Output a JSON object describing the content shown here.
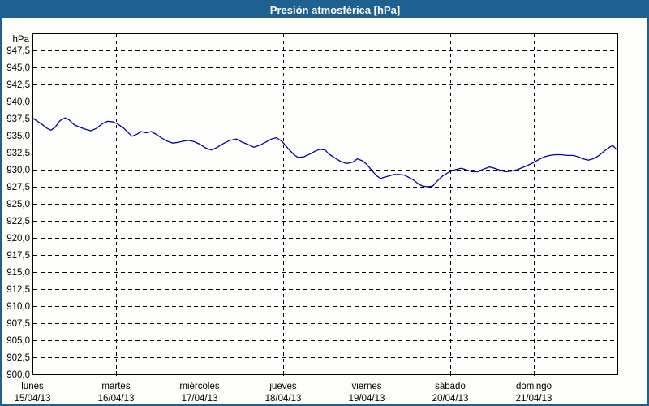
{
  "title_bar": {
    "title": "Presión atmosférica [hPa]"
  },
  "colors": {
    "frame_blue": "#1e6191",
    "title_text": "#ffffff",
    "background": "#fdfefa",
    "plot_background": "#fefefc",
    "grid": "#000000",
    "axis_text": "#000000",
    "line_blue": "#0101a8"
  },
  "chart_data": {
    "type": "line",
    "title": "Presión atmosférica [hPa]",
    "y_unit_label": "hPa",
    "ylim": [
      900.0,
      950.0
    ],
    "ytick_step": 2.5,
    "grid": "dashed",
    "legend": "none",
    "ytick_labels": [
      {
        "value": 947.5,
        "label": "947,5"
      },
      {
        "value": 945.0,
        "label": "945,0"
      },
      {
        "value": 942.5,
        "label": "942,5"
      },
      {
        "value": 940.0,
        "label": "940,0"
      },
      {
        "value": 937.5,
        "label": "937,5"
      },
      {
        "value": 935.0,
        "label": "935,0"
      },
      {
        "value": 932.5,
        "label": "932,5"
      },
      {
        "value": 930.0,
        "label": "930,0"
      },
      {
        "value": 927.5,
        "label": "927,5"
      },
      {
        "value": 925.0,
        "label": "925,0"
      },
      {
        "value": 922.5,
        "label": "922,5"
      },
      {
        "value": 920.0,
        "label": "920,0"
      },
      {
        "value": 917.5,
        "label": "917,5"
      },
      {
        "value": 915.0,
        "label": "915,0"
      },
      {
        "value": 912.5,
        "label": "912,5"
      },
      {
        "value": 910.0,
        "label": "910,0"
      },
      {
        "value": 907.5,
        "label": "907,5"
      },
      {
        "value": 905.0,
        "label": "905,0"
      },
      {
        "value": 902.5,
        "label": "902,5"
      },
      {
        "value": 900.0,
        "label": "900,0"
      }
    ],
    "x_days": [
      {
        "name": "lunes",
        "date": "15/04/13"
      },
      {
        "name": "martes",
        "date": "16/04/13"
      },
      {
        "name": "miércoles",
        "date": "17/04/13"
      },
      {
        "name": "jueves",
        "date": "18/04/13"
      },
      {
        "name": "viernes",
        "date": "19/04/13"
      },
      {
        "name": "sábado",
        "date": "20/04/13"
      },
      {
        "name": "domingo",
        "date": "21/04/13"
      }
    ],
    "series": [
      {
        "name": "Presión atmosférica",
        "unit": "hPa",
        "x_unit": "days from 15/04/13 00:00",
        "points": [
          [
            0.0,
            937.6
          ],
          [
            0.06,
            937.1
          ],
          [
            0.12,
            936.6
          ],
          [
            0.17,
            936.1
          ],
          [
            0.22,
            935.8
          ],
          [
            0.27,
            936.2
          ],
          [
            0.33,
            937.2
          ],
          [
            0.39,
            937.6
          ],
          [
            0.44,
            937.3
          ],
          [
            0.5,
            936.6
          ],
          [
            0.57,
            936.2
          ],
          [
            0.64,
            935.9
          ],
          [
            0.7,
            935.7
          ],
          [
            0.77,
            936.1
          ],
          [
            0.83,
            936.7
          ],
          [
            0.9,
            937.1
          ],
          [
            0.97,
            937.0
          ],
          [
            1.02,
            936.7
          ],
          [
            1.09,
            936.1
          ],
          [
            1.15,
            935.4
          ],
          [
            1.19,
            934.9
          ],
          [
            1.25,
            935.2
          ],
          [
            1.3,
            935.6
          ],
          [
            1.36,
            935.4
          ],
          [
            1.42,
            935.6
          ],
          [
            1.48,
            935.2
          ],
          [
            1.54,
            934.7
          ],
          [
            1.61,
            934.2
          ],
          [
            1.68,
            933.9
          ],
          [
            1.74,
            934.0
          ],
          [
            1.81,
            934.2
          ],
          [
            1.87,
            934.3
          ],
          [
            1.94,
            934.1
          ],
          [
            2.01,
            933.7
          ],
          [
            2.07,
            933.2
          ],
          [
            2.14,
            932.9
          ],
          [
            2.2,
            933.2
          ],
          [
            2.28,
            933.8
          ],
          [
            2.36,
            934.3
          ],
          [
            2.44,
            934.5
          ],
          [
            2.5,
            934.1
          ],
          [
            2.58,
            933.7
          ],
          [
            2.65,
            933.3
          ],
          [
            2.72,
            933.6
          ],
          [
            2.8,
            934.1
          ],
          [
            2.86,
            934.5
          ],
          [
            2.92,
            934.7
          ],
          [
            2.99,
            934.1
          ],
          [
            3.06,
            933.1
          ],
          [
            3.13,
            932.2
          ],
          [
            3.18,
            931.8
          ],
          [
            3.25,
            931.9
          ],
          [
            3.32,
            932.3
          ],
          [
            3.38,
            932.7
          ],
          [
            3.44,
            933.0
          ],
          [
            3.5,
            932.9
          ],
          [
            3.55,
            932.3
          ],
          [
            3.62,
            931.7
          ],
          [
            3.69,
            931.2
          ],
          [
            3.76,
            930.9
          ],
          [
            3.83,
            931.1
          ],
          [
            3.89,
            931.6
          ],
          [
            3.95,
            931.3
          ],
          [
            4.0,
            930.8
          ],
          [
            4.06,
            929.9
          ],
          [
            4.12,
            929.1
          ],
          [
            4.17,
            928.7
          ],
          [
            4.21,
            928.9
          ],
          [
            4.27,
            929.1
          ],
          [
            4.33,
            929.3
          ],
          [
            4.39,
            929.3
          ],
          [
            4.45,
            929.2
          ],
          [
            4.5,
            928.9
          ],
          [
            4.56,
            928.5
          ],
          [
            4.62,
            927.9
          ],
          [
            4.67,
            927.6
          ],
          [
            4.73,
            927.5
          ],
          [
            4.79,
            927.6
          ],
          [
            4.84,
            928.3
          ],
          [
            4.91,
            929.1
          ],
          [
            4.99,
            929.7
          ],
          [
            5.06,
            930.0
          ],
          [
            5.13,
            930.2
          ],
          [
            5.19,
            930.0
          ],
          [
            5.26,
            929.7
          ],
          [
            5.33,
            929.7
          ],
          [
            5.4,
            930.1
          ],
          [
            5.47,
            930.4
          ],
          [
            5.53,
            930.2
          ],
          [
            5.6,
            929.9
          ],
          [
            5.66,
            929.7
          ],
          [
            5.73,
            929.8
          ],
          [
            5.8,
            930.0
          ],
          [
            5.86,
            930.3
          ],
          [
            5.92,
            930.6
          ],
          [
            5.99,
            931.0
          ],
          [
            6.06,
            931.5
          ],
          [
            6.13,
            931.9
          ],
          [
            6.19,
            932.1
          ],
          [
            6.26,
            932.2
          ],
          [
            6.33,
            932.2
          ],
          [
            6.4,
            932.1
          ],
          [
            6.47,
            932.1
          ],
          [
            6.53,
            931.9
          ],
          [
            6.59,
            931.6
          ],
          [
            6.65,
            931.4
          ],
          [
            6.71,
            931.6
          ],
          [
            6.77,
            932.0
          ],
          [
            6.82,
            932.5
          ],
          [
            6.87,
            933.0
          ],
          [
            6.92,
            933.4
          ],
          [
            6.95,
            933.5
          ],
          [
            6.98,
            933.1
          ],
          [
            7.0,
            932.9
          ]
        ]
      }
    ]
  }
}
